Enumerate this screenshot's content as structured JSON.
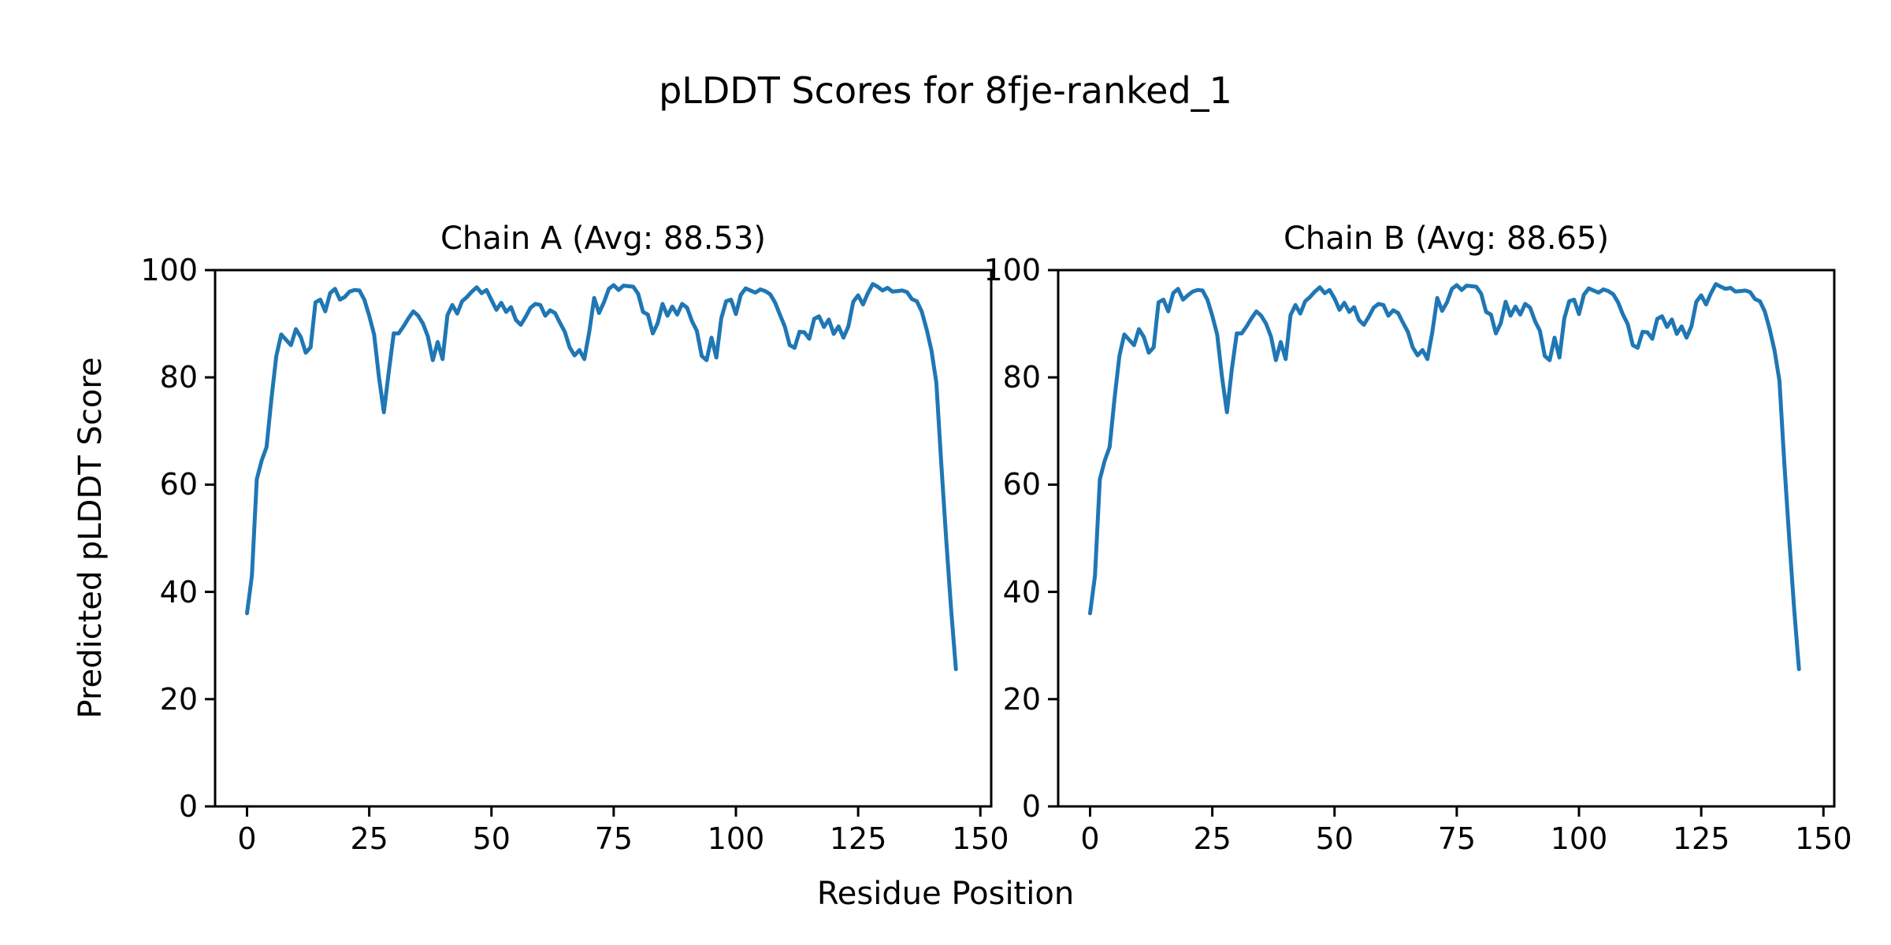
{
  "figure": {
    "title": "pLDDT Scores for 8fje-ranked_1",
    "xlabel": "Residue Position",
    "ylabel": "Predicted pLDDT Score",
    "background_color": "#ffffff",
    "text_color": "#000000",
    "accent_line_color": "#1f77b4"
  },
  "chart_data": [
    {
      "type": "line",
      "title": "Chain A (Avg: 88.53)",
      "chain": "A",
      "average_plddt": 88.53,
      "xlabel": "Residue Position",
      "ylabel": "Predicted pLDDT Score",
      "x_start": 0,
      "x_step": 1,
      "x_ticks": [
        0,
        25,
        50,
        75,
        100,
        125,
        150
      ],
      "y_ticks": [
        0,
        20,
        40,
        60,
        80,
        100
      ],
      "xlim": [
        -6.5,
        152.3
      ],
      "ylim": [
        0,
        100
      ],
      "grid": false,
      "legend": "none",
      "line_color": "#1f77b4",
      "values": [
        36,
        43,
        61,
        64.5,
        67,
        76,
        84,
        88,
        87,
        86,
        89,
        87.5,
        84.6,
        85.6,
        94,
        94.5,
        92.3,
        95.7,
        96.5,
        94.5,
        95,
        96,
        96.3,
        96.2,
        94.5,
        91.5,
        88,
        80,
        73.5,
        81,
        88.2,
        88.2,
        89.5,
        91,
        92.3,
        91.5,
        90,
        87.6,
        83.2,
        86.6,
        83.4,
        91.6,
        93.5,
        91.9,
        94.2,
        95,
        96,
        96.8,
        95.7,
        96.3,
        94.4,
        92.6,
        93.9,
        92.2,
        93.1,
        90.7,
        89.8,
        91.3,
        93,
        93.7,
        93.5,
        91.5,
        92.5,
        92,
        90.2,
        88.5,
        85.6,
        84.1,
        85.1,
        83.4,
        88.5,
        94.8,
        92,
        94,
        96.5,
        97.2,
        96.3,
        97.1,
        97,
        96.9,
        95.6,
        92.2,
        91.7,
        88.2,
        90.1,
        93.7,
        91.5,
        93.2,
        91.7,
        93.7,
        93,
        90.5,
        88.7,
        84,
        83.2,
        87.4,
        83.7,
        91,
        94.2,
        94.5,
        91.8,
        95.4,
        96.6,
        96.2,
        95.8,
        96.4,
        96.1,
        95.5,
        94,
        91.7,
        89.5,
        86,
        85.5,
        88.5,
        88.4,
        87.2,
        90.9,
        91.4,
        89.4,
        90.8,
        88.1,
        89.5,
        87.4,
        89.5,
        94.1,
        95.3,
        93.6,
        95.7,
        97.4,
        96.9,
        96.2,
        96.7,
        96,
        96.1,
        96.2,
        95.9,
        94.6,
        94.2,
        92.3,
        89,
        85,
        79,
        64,
        50,
        37,
        25.6
      ]
    },
    {
      "type": "line",
      "title": "Chain B (Avg: 88.65)",
      "chain": "B",
      "average_plddt": 88.65,
      "xlabel": "Residue Position",
      "ylabel": "Predicted pLDDT Score",
      "x_start": 0,
      "x_step": 1,
      "x_ticks": [
        0,
        25,
        50,
        75,
        100,
        125,
        150
      ],
      "y_ticks": [
        0,
        20,
        40,
        60,
        80,
        100
      ],
      "xlim": [
        -6.5,
        152.3
      ],
      "ylim": [
        0,
        100
      ],
      "grid": false,
      "legend": "none",
      "line_color": "#1f77b4",
      "values": [
        36,
        43,
        61,
        64.5,
        67,
        76,
        84,
        88,
        87,
        86,
        89,
        87.5,
        84.6,
        85.6,
        94,
        94.5,
        92.3,
        95.7,
        96.5,
        94.5,
        95.3,
        96,
        96.3,
        96.2,
        94.5,
        91.5,
        88,
        80,
        73.5,
        81.5,
        88.2,
        88.2,
        89.5,
        91,
        92.3,
        91.5,
        90,
        87.6,
        83.2,
        86.6,
        83.4,
        91.6,
        93.5,
        91.9,
        94.2,
        95,
        96,
        96.8,
        95.7,
        96.3,
        94.7,
        92.6,
        93.9,
        92.2,
        93.1,
        90.7,
        89.8,
        91.3,
        93,
        93.7,
        93.5,
        91.5,
        92.5,
        92,
        90.2,
        88.5,
        85.6,
        84.1,
        85.1,
        83.4,
        88.5,
        94.8,
        92.4,
        94,
        96.5,
        97.2,
        96.3,
        97.1,
        97,
        96.9,
        95.6,
        92.2,
        91.7,
        88.2,
        90.1,
        94.1,
        91.5,
        93.2,
        91.7,
        93.7,
        93,
        90.5,
        88.7,
        84,
        83.2,
        87.4,
        83.7,
        91,
        94.2,
        94.5,
        91.8,
        95.4,
        96.6,
        96.2,
        95.8,
        96.4,
        96.1,
        95.5,
        94,
        91.7,
        89.9,
        86,
        85.5,
        88.5,
        88.4,
        87.2,
        90.9,
        91.4,
        89.4,
        90.8,
        88.1,
        89.5,
        87.4,
        89.5,
        94.1,
        95.3,
        93.6,
        95.7,
        97.4,
        96.9,
        96.5,
        96.7,
        96,
        96.1,
        96.2,
        95.9,
        94.6,
        94.2,
        92.3,
        89,
        85,
        79.4,
        64,
        50,
        37,
        25.6
      ]
    }
  ]
}
